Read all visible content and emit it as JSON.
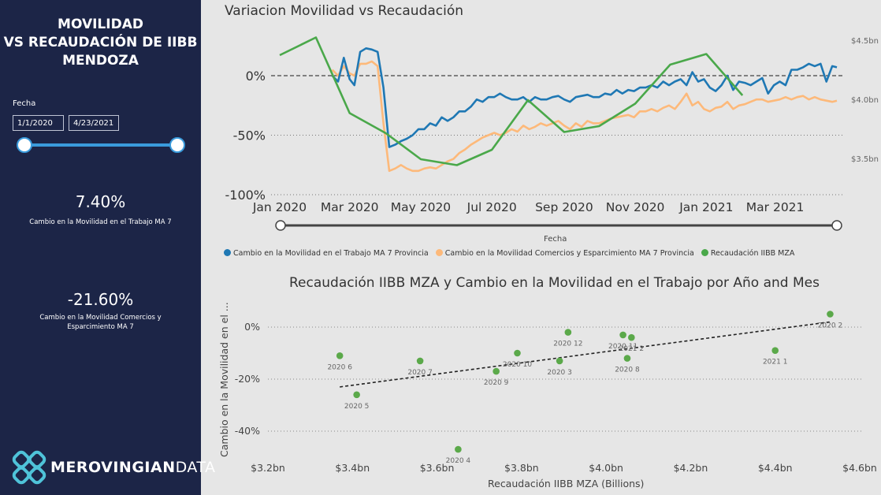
{
  "sidebar": {
    "title_line1": "MOVILIDAD",
    "title_line2": "VS RECAUDACIÓN DE IIBB",
    "title_line3": "MENDOZA",
    "fecha_label": "Fecha",
    "date_start": "1/1/2020",
    "date_end": "4/23/2021",
    "kpi1_value": "7.40%",
    "kpi1_label": "Cambio en la Movilidad en el Trabajo MA 7",
    "kpi2_value": "-21.60%",
    "kpi2_label": "Cambio en la Movilidad Comercios y Esparcimiento MA 7",
    "logo_text_bold": "Merovingian",
    "logo_text_light": "Data"
  },
  "colors": {
    "sidebar_bg": "#1c2547",
    "work": "#1f78b4",
    "commerce": "#fdb97a",
    "iibb": "#4aa84a",
    "scatter_dot": "#5ba94a"
  },
  "line_chart": {
    "title": "Variacion Movilidad vs Recaudación",
    "x_axis_title": "Fecha",
    "x_ticks": [
      "Jan 2020",
      "Mar 2020",
      "May 2020",
      "Jul 2020",
      "Sep 2020",
      "Nov 2020",
      "Jan 2021",
      "Mar 2021"
    ],
    "y_ticks": [
      "0%",
      "-50%",
      "-100%"
    ],
    "y2_ticks": [
      "$4.5bn",
      "$4.0bn",
      "$3.5bn"
    ],
    "legend": [
      "Cambio en la Movilidad en el Trabajo MA 7 Provincia",
      "Cambio en la Movilidad Comercios y Esparcimiento MA 7 Provincia",
      "Recaudación IIBB MZA"
    ]
  },
  "scatter_chart": {
    "title": "Recaudación IIBB MZA y Cambio en la Movilidad en el Trabajo por Año and Mes",
    "x_axis_title": "Recaudación IIBB MZA (Billions)",
    "y_axis_title": "Cambio en la Movilidad en el ...",
    "x_ticks": [
      "$3.2bn",
      "$3.4bn",
      "$3.6bn",
      "$3.8bn",
      "$4.0bn",
      "$4.2bn",
      "$4.4bn",
      "$4.6bn"
    ],
    "y_ticks": [
      "0%",
      "-20%",
      "-40%"
    ]
  },
  "chart_data": [
    {
      "type": "line",
      "title": "Variacion Movilidad vs Recaudación",
      "xlabel": "Fecha",
      "x_range": [
        "2020-01-01",
        "2021-04-23"
      ],
      "ylim": [
        -100,
        25
      ],
      "y2lim": [
        3.3,
        4.6
      ],
      "series": [
        {
          "name": "Cambio en la Movilidad en el Trabajo MA 7 Provincia",
          "axis": "left",
          "x": [
            "2020-02-15",
            "2020-02-20",
            "2020-02-25",
            "2020-03-01",
            "2020-03-05",
            "2020-03-10",
            "2020-03-15",
            "2020-03-20",
            "2020-03-25",
            "2020-03-30",
            "2020-04-04",
            "2020-04-09",
            "2020-04-14",
            "2020-04-19",
            "2020-04-24",
            "2020-04-29",
            "2020-05-04",
            "2020-05-09",
            "2020-05-14",
            "2020-05-19",
            "2020-05-24",
            "2020-05-29",
            "2020-06-03",
            "2020-06-08",
            "2020-06-13",
            "2020-06-18",
            "2020-06-23",
            "2020-06-28",
            "2020-07-03",
            "2020-07-08",
            "2020-07-13",
            "2020-07-18",
            "2020-07-23",
            "2020-07-28",
            "2020-08-02",
            "2020-08-07",
            "2020-08-12",
            "2020-08-17",
            "2020-08-22",
            "2020-08-27",
            "2020-09-01",
            "2020-09-06",
            "2020-09-11",
            "2020-09-16",
            "2020-09-21",
            "2020-09-26",
            "2020-10-01",
            "2020-10-06",
            "2020-10-11",
            "2020-10-16",
            "2020-10-21",
            "2020-10-26",
            "2020-10-31",
            "2020-11-05",
            "2020-11-10",
            "2020-11-15",
            "2020-11-20",
            "2020-11-25",
            "2020-11-30",
            "2020-12-05",
            "2020-12-10",
            "2020-12-15",
            "2020-12-20",
            "2020-12-25",
            "2020-12-30",
            "2021-01-04",
            "2021-01-09",
            "2021-01-14",
            "2021-01-19",
            "2021-01-24",
            "2021-01-29",
            "2021-02-03",
            "2021-02-08",
            "2021-02-13",
            "2021-02-18",
            "2021-02-23",
            "2021-02-28",
            "2021-03-05",
            "2021-03-10",
            "2021-03-15",
            "2021-03-20",
            "2021-03-25",
            "2021-03-30",
            "2021-04-04",
            "2021-04-09",
            "2021-04-14",
            "2021-04-19",
            "2021-04-23"
          ],
          "values": [
            0,
            -5,
            15,
            -3,
            -8,
            20,
            23,
            22,
            20,
            -10,
            -60,
            -58,
            -55,
            -53,
            -50,
            -45,
            -45,
            -40,
            -42,
            -35,
            -38,
            -35,
            -30,
            -30,
            -26,
            -20,
            -22,
            -18,
            -18,
            -15,
            -18,
            -20,
            -20,
            -18,
            -22,
            -18,
            -20,
            -20,
            -18,
            -17,
            -20,
            -22,
            -18,
            -17,
            -16,
            -18,
            -18,
            -15,
            -16,
            -12,
            -15,
            -12,
            -13,
            -10,
            -10,
            -8,
            -10,
            -5,
            -8,
            -5,
            -3,
            -8,
            3,
            -5,
            -3,
            -10,
            -13,
            -8,
            0,
            -12,
            -5,
            -6,
            -8,
            -5,
            -2,
            -15,
            -8,
            -5,
            -8,
            5,
            5,
            7,
            10,
            8,
            10,
            -5,
            8,
            7
          ]
        },
        {
          "name": "Cambio en la Movilidad Comercios y Esparcimiento MA 7 Provincia",
          "axis": "left",
          "x": [
            "2020-02-15",
            "2020-02-20",
            "2020-02-25",
            "2020-03-01",
            "2020-03-05",
            "2020-03-10",
            "2020-03-15",
            "2020-03-20",
            "2020-03-25",
            "2020-03-30",
            "2020-04-04",
            "2020-04-09",
            "2020-04-14",
            "2020-04-19",
            "2020-04-24",
            "2020-04-29",
            "2020-05-04",
            "2020-05-09",
            "2020-05-14",
            "2020-05-19",
            "2020-05-24",
            "2020-05-29",
            "2020-06-03",
            "2020-06-08",
            "2020-06-13",
            "2020-06-18",
            "2020-06-23",
            "2020-06-28",
            "2020-07-03",
            "2020-07-08",
            "2020-07-13",
            "2020-07-18",
            "2020-07-23",
            "2020-07-28",
            "2020-08-02",
            "2020-08-07",
            "2020-08-12",
            "2020-08-17",
            "2020-08-22",
            "2020-08-27",
            "2020-09-01",
            "2020-09-06",
            "2020-09-11",
            "2020-09-16",
            "2020-09-21",
            "2020-09-26",
            "2020-10-01",
            "2020-10-06",
            "2020-10-11",
            "2020-10-16",
            "2020-10-21",
            "2020-10-26",
            "2020-10-31",
            "2020-11-05",
            "2020-11-10",
            "2020-11-15",
            "2020-11-20",
            "2020-11-25",
            "2020-11-30",
            "2020-12-05",
            "2020-12-10",
            "2020-12-15",
            "2020-12-20",
            "2020-12-25",
            "2020-12-30",
            "2021-01-04",
            "2021-01-09",
            "2021-01-14",
            "2021-01-19",
            "2021-01-24",
            "2021-01-29",
            "2021-02-03",
            "2021-02-08",
            "2021-02-13",
            "2021-02-18",
            "2021-02-23",
            "2021-02-28",
            "2021-03-05",
            "2021-03-10",
            "2021-03-15",
            "2021-03-20",
            "2021-03-25",
            "2021-03-30",
            "2021-04-04",
            "2021-04-09",
            "2021-04-14",
            "2021-04-19",
            "2021-04-23"
          ],
          "values": [
            5,
            0,
            8,
            2,
            0,
            10,
            10,
            12,
            8,
            -40,
            -80,
            -78,
            -75,
            -78,
            -80,
            -80,
            -78,
            -77,
            -78,
            -75,
            -72,
            -70,
            -65,
            -62,
            -58,
            -55,
            -52,
            -50,
            -48,
            -50,
            -48,
            -45,
            -47,
            -42,
            -45,
            -43,
            -40,
            -42,
            -40,
            -38,
            -42,
            -45,
            -40,
            -43,
            -38,
            -40,
            -40,
            -38,
            -36,
            -35,
            -34,
            -33,
            -35,
            -30,
            -30,
            -28,
            -30,
            -27,
            -25,
            -28,
            -22,
            -15,
            -25,
            -22,
            -28,
            -30,
            -27,
            -26,
            -22,
            -28,
            -25,
            -24,
            -22,
            -20,
            -20,
            -22,
            -21,
            -20,
            -18,
            -20,
            -18,
            -17,
            -20,
            -18,
            -20,
            -21,
            -22,
            -21
          ]
        },
        {
          "name": "Recaudación IIBB MZA",
          "axis": "right",
          "x": [
            "2020-01-01",
            "2020-02-01",
            "2020-03-01",
            "2020-04-01",
            "2020-05-01",
            "2020-06-01",
            "2020-07-01",
            "2020-08-01",
            "2020-09-01",
            "2020-10-01",
            "2020-11-01",
            "2020-12-01",
            "2021-01-01",
            "2021-02-01"
          ],
          "values": [
            4.38,
            4.53,
            3.89,
            3.72,
            3.5,
            3.45,
            3.58,
            4.0,
            3.73,
            3.78,
            3.97,
            4.3,
            4.39,
            4.04
          ]
        }
      ]
    },
    {
      "type": "scatter",
      "title": "Recaudación IIBB MZA y Cambio en la Movilidad en el Trabajo por Año and Mes",
      "xlabel": "Recaudación IIBB MZA (Billions)",
      "ylabel": "Cambio en la Movilidad en el ...",
      "xlim": [
        3.2,
        4.6
      ],
      "ylim": [
        -50,
        8
      ],
      "points": [
        {
          "label": "2020 2",
          "x": 4.53,
          "y": 5
        },
        {
          "label": "2020 11",
          "x": 4.04,
          "y": -3
        },
        {
          "label": "2021 2",
          "x": 4.06,
          "y": -4
        },
        {
          "label": "2020 12",
          "x": 3.91,
          "y": -2
        },
        {
          "label": "2021 1",
          "x": 4.4,
          "y": -9
        },
        {
          "label": "2020 6",
          "x": 3.37,
          "y": -11
        },
        {
          "label": "2020 10",
          "x": 3.79,
          "y": -10
        },
        {
          "label": "2020 7",
          "x": 3.56,
          "y": -13
        },
        {
          "label": "2020 3",
          "x": 3.89,
          "y": -13
        },
        {
          "label": "2020 8",
          "x": 4.05,
          "y": -12
        },
        {
          "label": "2020 9",
          "x": 3.74,
          "y": -17
        },
        {
          "label": "2020 5",
          "x": 3.41,
          "y": -26
        },
        {
          "label": "2020 4",
          "x": 3.65,
          "y": -47
        }
      ],
      "trendline": {
        "x": [
          3.37,
          4.53
        ],
        "y": [
          -23,
          2
        ]
      }
    }
  ]
}
